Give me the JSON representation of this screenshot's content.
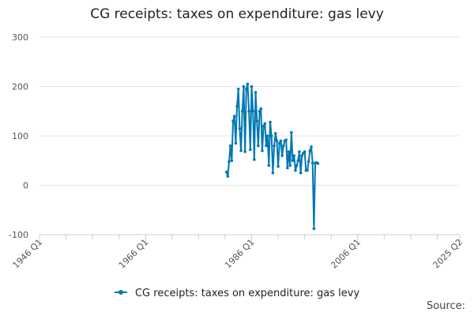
{
  "chart_data": {
    "type": "line",
    "title": "CG receipts: taxes on expenditure: gas levy",
    "xlabel": "",
    "ylabel": "",
    "ylim": [
      -100,
      300
    ],
    "yticks": [
      -100,
      0,
      100,
      200,
      300
    ],
    "xlim": [
      1946,
      2025.25
    ],
    "xtick_labels": [
      "1946 Q1",
      "1966 Q1",
      "1986 Q1",
      "2006 Q1",
      "2025 Q2"
    ],
    "grid": "horizontal",
    "legend_position": "bottom",
    "color": "#0077b3",
    "series": [
      {
        "name": "CG receipts: taxes on expenditure: gas levy",
        "x": [
          1981.25,
          1981.5,
          1981.75,
          1982.0,
          1982.25,
          1982.5,
          1982.75,
          1983.0,
          1983.25,
          1983.5,
          1983.75,
          1984.0,
          1984.25,
          1984.5,
          1984.75,
          1985.0,
          1985.25,
          1985.5,
          1985.75,
          1986.0,
          1986.25,
          1986.5,
          1986.75,
          1987.0,
          1987.25,
          1987.5,
          1987.75,
          1988.0,
          1988.25,
          1988.5,
          1988.75,
          1989.0,
          1989.25,
          1989.5,
          1989.75,
          1990.0,
          1990.25,
          1990.5,
          1990.75,
          1991.0,
          1991.25,
          1991.5,
          1991.75,
          1992.0,
          1992.25,
          1992.5,
          1992.75,
          1993.0,
          1993.25,
          1993.5,
          1993.75,
          1994.0,
          1994.25,
          1994.5,
          1994.75,
          1995.0,
          1995.25,
          1995.5,
          1995.75,
          1996.0,
          1996.25,
          1996.5,
          1996.75,
          1997.0,
          1997.25,
          1997.5,
          1997.75,
          1998.0,
          1998.25,
          1998.5
        ],
        "y": [
          27,
          18,
          48,
          80,
          50,
          130,
          140,
          85,
          160,
          195,
          115,
          70,
          150,
          200,
          68,
          195,
          205,
          150,
          72,
          200,
          150,
          52,
          188,
          130,
          80,
          150,
          155,
          70,
          120,
          125,
          80,
          100,
          40,
          128,
          100,
          25,
          80,
          105,
          90,
          38,
          85,
          90,
          60,
          80,
          90,
          92,
          35,
          68,
          40,
          107,
          50,
          60,
          30,
          40,
          50,
          68,
          25,
          60,
          65,
          68,
          30,
          30,
          48,
          70,
          78,
          45,
          -88,
          45,
          46,
          44
        ]
      }
    ]
  },
  "source_label": "Source:"
}
